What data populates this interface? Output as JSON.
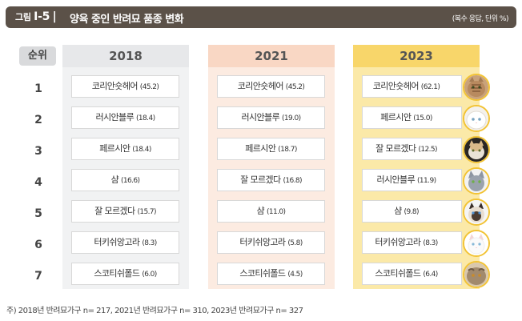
{
  "header": {
    "fig_prefix": "그림",
    "fig_number": "Ⅰ-5",
    "separator": "|",
    "title": "양육 중인 반려묘 품종 변화",
    "unit": "(복수 응답, 단위 %)"
  },
  "table": {
    "rank_header": "순위",
    "ranks": [
      "1",
      "2",
      "3",
      "4",
      "5",
      "6",
      "7"
    ],
    "columns": [
      {
        "year": "2018",
        "items": [
          {
            "breed": "코리안숏헤어",
            "pct": "(45.2)"
          },
          {
            "breed": "러시안블루",
            "pct": "(18.4)"
          },
          {
            "breed": "페르시안",
            "pct": "(18.4)"
          },
          {
            "breed": "샴",
            "pct": "(16.6)"
          },
          {
            "breed": "잘 모르겠다",
            "pct": "(15.7)"
          },
          {
            "breed": "터키쉬앙고라",
            "pct": "(8.3)"
          },
          {
            "breed": "스코티쉬폴드",
            "pct": "(6.0)"
          }
        ]
      },
      {
        "year": "2021",
        "items": [
          {
            "breed": "코리안숏헤어",
            "pct": "(45.2)"
          },
          {
            "breed": "러시안블루",
            "pct": "(19.0)"
          },
          {
            "breed": "페르시안",
            "pct": "(18.7)"
          },
          {
            "breed": "잘 모르겠다",
            "pct": "(16.8)"
          },
          {
            "breed": "샴",
            "pct": "(11.0)"
          },
          {
            "breed": "터키쉬앙고라",
            "pct": "(5.8)"
          },
          {
            "breed": "스코티쉬폴드",
            "pct": "(4.5)"
          }
        ]
      },
      {
        "year": "2023",
        "items": [
          {
            "breed": "코리안숏헤어",
            "pct": "(62.1)"
          },
          {
            "breed": "페르시안",
            "pct": "(15.0)"
          },
          {
            "breed": "잘 모르겠다",
            "pct": "(12.5)"
          },
          {
            "breed": "러시안블루",
            "pct": "(11.9)"
          },
          {
            "breed": "샴",
            "pct": "(9.8)"
          },
          {
            "breed": "터키쉬앙고라",
            "pct": "(8.3)"
          },
          {
            "breed": "스코티쉬폴드",
            "pct": "(6.4)"
          }
        ]
      }
    ]
  },
  "cat_icons": [
    "korean-shorthair-cat-icon",
    "persian-cat-icon",
    "mixed-cat-icon",
    "russian-blue-cat-icon",
    "siamese-cat-icon",
    "turkish-angora-cat-icon",
    "scottish-fold-cat-icon"
  ],
  "colors": {
    "title_bar": "#5b5148",
    "col_2018": "#f1f2f3",
    "col_2021": "#fcebe1",
    "col_2023": "#fbe9a8",
    "cat_ring": "#f2c335"
  },
  "footnote": "주) 2018년 반려묘가구 n= 217, 2021년 반려묘가구 n= 310, 2023년 반려묘가구 n= 327"
}
